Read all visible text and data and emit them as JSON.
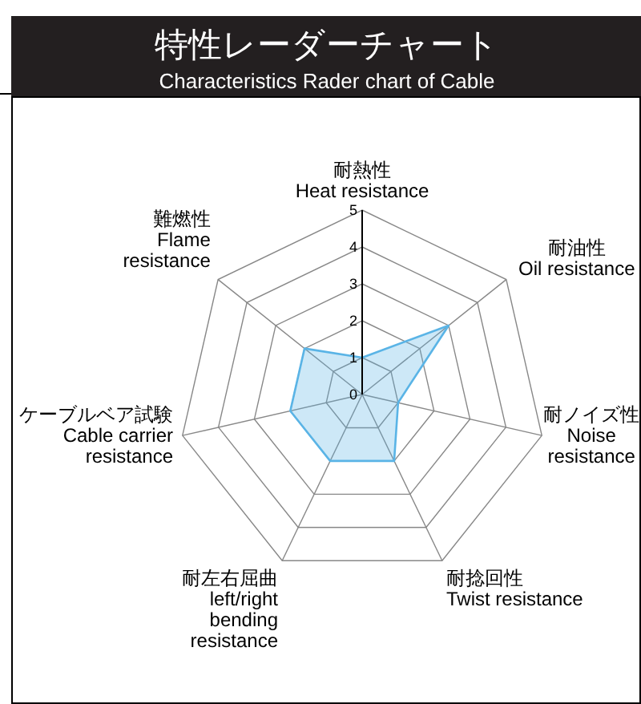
{
  "chart_data": {
    "type": "radar",
    "title": "特性レーダーチャート",
    "subtitle": "Characteristics Rader chart of Cable",
    "categories": [
      "耐熱性\nHeat resistance",
      "耐油性\nOil resistance",
      "耐ノイズ性\nNoise\nresistance",
      "耐捻回性\nTwist resistance",
      "耐左右屈曲\nleft/right\nbending\nresistance",
      "ケーブルベア試験\nCable carrier\nresistance",
      "難燃性\nFlame\nresistance"
    ],
    "series": [
      {
        "color": "#5ab4e6",
        "values": [
          1,
          3,
          1,
          2,
          2,
          2,
          2
        ]
      }
    ],
    "ylim": [
      0,
      5
    ],
    "yticks": [
      0,
      1,
      2,
      3,
      4,
      5
    ],
    "grid": true
  }
}
